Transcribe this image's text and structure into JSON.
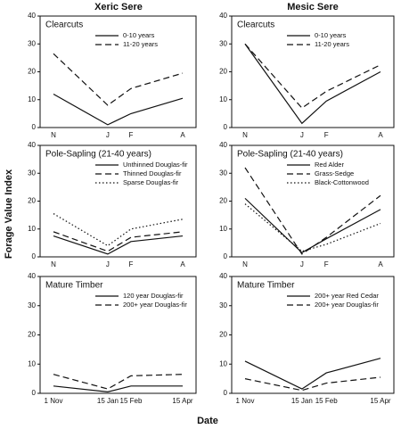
{
  "titles": [
    "Xeric Sere",
    "Mesic Sere"
  ],
  "ylabel": "Forage Value Index",
  "xlabel": "Date",
  "chart_data": [
    {
      "type": "line",
      "title": "Clearcuts",
      "categories": [
        "N",
        "J",
        "F",
        "A"
      ],
      "ylim": [
        0,
        40
      ],
      "yticks": [
        0,
        10,
        20,
        30,
        40
      ],
      "series": [
        {
          "name": "0-10 years",
          "color": "#111",
          "dash": "solid",
          "values": [
            12,
            1,
            5,
            10.5
          ]
        },
        {
          "name": "11-20 years",
          "color": "#111",
          "dash": "dashed",
          "values": [
            26.5,
            8,
            14,
            19.5
          ]
        }
      ]
    },
    {
      "type": "line",
      "title": "Clearcuts",
      "categories": [
        "N",
        "J",
        "F",
        "A"
      ],
      "ylim": [
        0,
        40
      ],
      "yticks": [
        0,
        10,
        20,
        30,
        40
      ],
      "series": [
        {
          "name": "0-10 years",
          "color": "#111",
          "dash": "solid",
          "values": [
            30,
            1.5,
            9.5,
            20
          ]
        },
        {
          "name": "11-20 years",
          "color": "#111",
          "dash": "dashed",
          "values": [
            30,
            7,
            13,
            22.5
          ]
        }
      ]
    },
    {
      "type": "line",
      "title": "Pole-Sapling (21-40 years)",
      "categories": [
        "N",
        "J",
        "F",
        "A"
      ],
      "ylim": [
        0,
        40
      ],
      "yticks": [
        0,
        10,
        20,
        30,
        40
      ],
      "series": [
        {
          "name": "Unthinned Douglas-fir",
          "color": "#111",
          "dash": "solid",
          "values": [
            7.5,
            1,
            5.5,
            7.5
          ]
        },
        {
          "name": "Thinned Douglas-fir",
          "color": "#111",
          "dash": "dashed",
          "values": [
            9,
            2,
            7,
            9
          ]
        },
        {
          "name": "Sparse Douglas-fir",
          "color": "#111",
          "dash": "dotted",
          "values": [
            15.5,
            4,
            10,
            13.5
          ]
        }
      ]
    },
    {
      "type": "line",
      "title": "Pole-Sapling (21-40 years)",
      "categories": [
        "N",
        "J",
        "F",
        "A"
      ],
      "ylim": [
        0,
        40
      ],
      "yticks": [
        0,
        10,
        20,
        30,
        40
      ],
      "series": [
        {
          "name": "Red Alder",
          "color": "#111",
          "dash": "solid",
          "values": [
            21,
            1.5,
            6.5,
            17
          ]
        },
        {
          "name": "Grass-Sedge",
          "color": "#111",
          "dash": "dashed",
          "values": [
            32,
            1,
            7,
            22
          ]
        },
        {
          "name": "Black-Cottonwood",
          "color": "#111",
          "dash": "dotted",
          "values": [
            19,
            2,
            4.5,
            12
          ]
        }
      ]
    },
    {
      "type": "line",
      "title": "Mature Timber",
      "categories": [
        "1 Nov",
        "15 Jan",
        "15 Feb",
        "15 Apr"
      ],
      "ylim": [
        0,
        40
      ],
      "yticks": [
        0,
        10,
        20,
        30,
        40
      ],
      "series": [
        {
          "name": "120 year Douglas-fir",
          "color": "#111",
          "dash": "solid",
          "values": [
            2.5,
            0.5,
            2.5,
            2.5
          ]
        },
        {
          "name": "200+ year Douglas-fir",
          "color": "#111",
          "dash": "dashed",
          "values": [
            6.5,
            1.5,
            6,
            6.5
          ]
        }
      ]
    },
    {
      "type": "line",
      "title": "Mature Timber",
      "categories": [
        "1 Nov",
        "15 Jan",
        "15 Feb",
        "15 Apr"
      ],
      "ylim": [
        0,
        40
      ],
      "yticks": [
        0,
        10,
        20,
        30,
        40
      ],
      "series": [
        {
          "name": "200+ year Red Cedar",
          "color": "#111",
          "dash": "solid",
          "values": [
            11,
            1.5,
            7,
            12
          ]
        },
        {
          "name": "200+ year Douglas-fir",
          "color": "#111",
          "dash": "dashed",
          "values": [
            5,
            1,
            3.5,
            5.5
          ]
        }
      ]
    }
  ]
}
